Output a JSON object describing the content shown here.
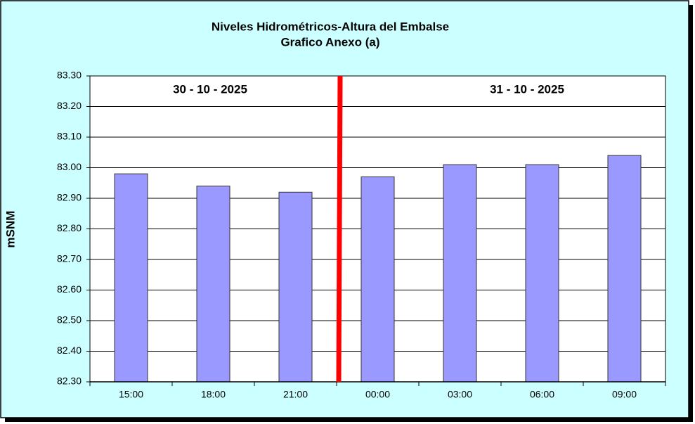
{
  "chart_data": {
    "type": "bar",
    "title": "Niveles Hidrométricos-Altura del Embalse",
    "subtitle": "Grafico Anexo (a)",
    "ylabel": "mSNM",
    "annotations": [
      "30 - 10 - 2025",
      "31 - 10 - 2025"
    ],
    "categories": [
      "15:00",
      "18:00",
      "21:00",
      "00:00",
      "03:00",
      "06:00",
      "09:00"
    ],
    "values": [
      82.98,
      82.94,
      82.92,
      82.97,
      83.01,
      83.01,
      83.04
    ],
    "color": "#9999ff",
    "ylim": [
      82.3,
      83.3
    ],
    "yticks": [
      {
        "value": 82.3,
        "label": "82.30"
      },
      {
        "value": 82.4,
        "label": "82.40"
      },
      {
        "value": 82.5,
        "label": "82.50"
      },
      {
        "value": 82.6,
        "label": "82.60"
      },
      {
        "value": 82.7,
        "label": "82.70"
      },
      {
        "value": 82.8,
        "label": "82.80"
      },
      {
        "value": 82.9,
        "label": "82.90"
      },
      {
        "value": 83.0,
        "label": "83.00"
      },
      {
        "value": 83.1,
        "label": "83.10"
      },
      {
        "value": 83.2,
        "label": "83.20"
      },
      {
        "value": 83.3,
        "label": "83.30"
      }
    ],
    "grid": true
  }
}
